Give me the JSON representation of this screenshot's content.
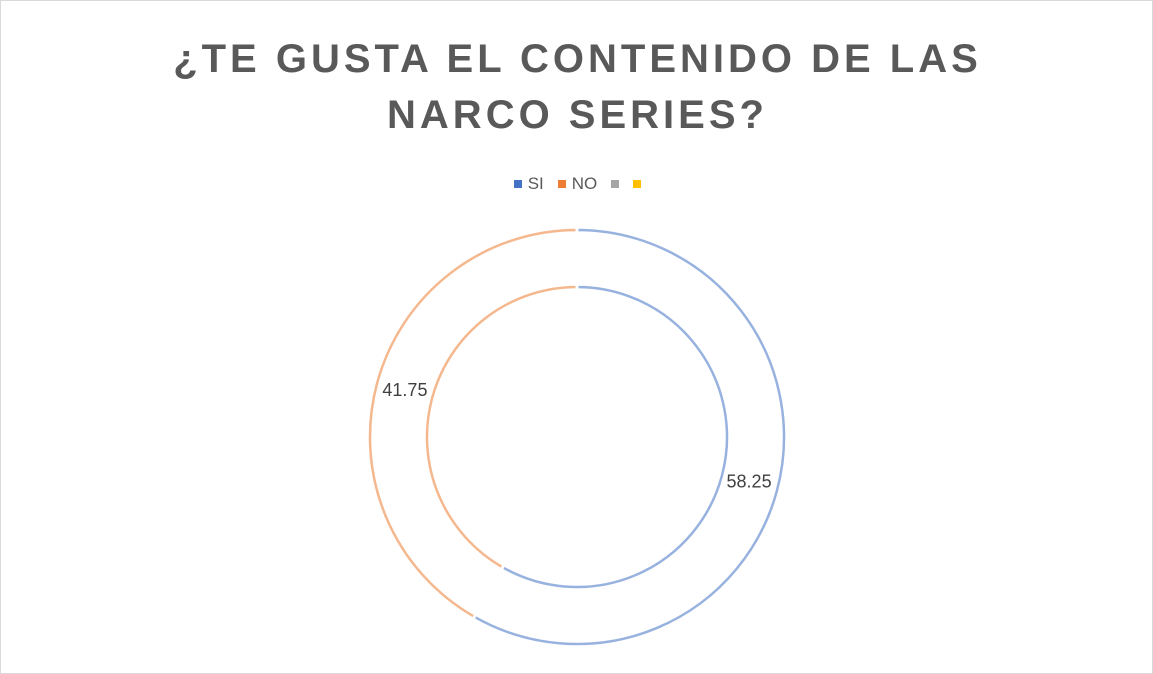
{
  "chart_data": {
    "type": "doughnut",
    "title": "¿TE GUSTA EL CONTENIDO DE LAS NARCO SERIES?",
    "categories": [
      "SI",
      "NO",
      null,
      null
    ],
    "values": [
      58.25,
      41.75,
      0,
      0
    ],
    "colors": [
      "#4472c4",
      "#ed7d31",
      "#a5a5a5",
      "#ffc000"
    ],
    "legend": "top"
  }
}
